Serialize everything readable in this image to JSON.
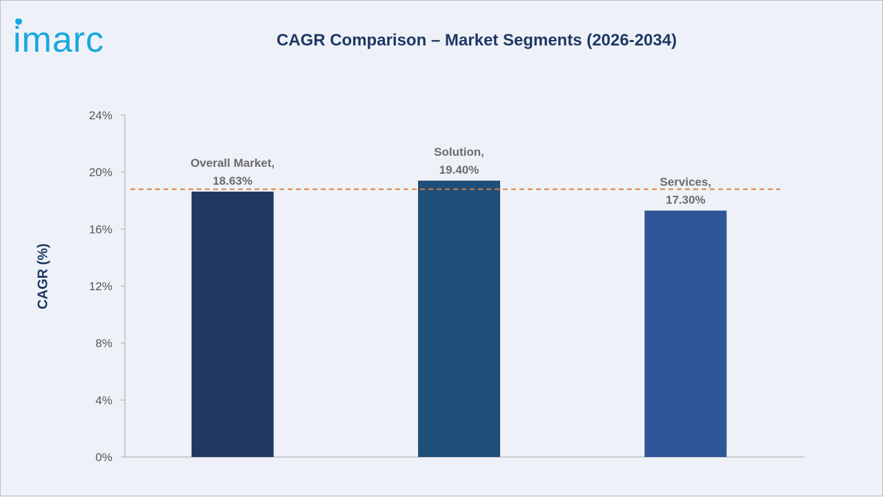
{
  "logo": {
    "text": "imarc"
  },
  "chart_data": {
    "type": "bar",
    "title": "CAGR Comparison – Market Segments (2026-2034)",
    "ylabel": "CAGR (%)",
    "xlabel": "",
    "categories": [
      "Overall Market",
      "Solution",
      "Services"
    ],
    "values": [
      18.63,
      19.4,
      17.3
    ],
    "data_labels": [
      [
        "Overall Market,",
        "18.63%"
      ],
      [
        "Solution,",
        "19.40%"
      ],
      [
        "Services,",
        "17.30%"
      ]
    ],
    "bar_colors": [
      "#203864",
      "#1f4e79",
      "#2f5597"
    ],
    "ylim": [
      0,
      24
    ],
    "yticks": [
      0,
      4,
      8,
      12,
      16,
      20,
      24
    ],
    "ytick_labels": [
      "0%",
      "4%",
      "8%",
      "12%",
      "16%",
      "20%",
      "24%"
    ],
    "reference_line": {
      "value": 18.8,
      "style": "dashed",
      "color": "#e07b39"
    },
    "grid": false,
    "legend": "none"
  }
}
